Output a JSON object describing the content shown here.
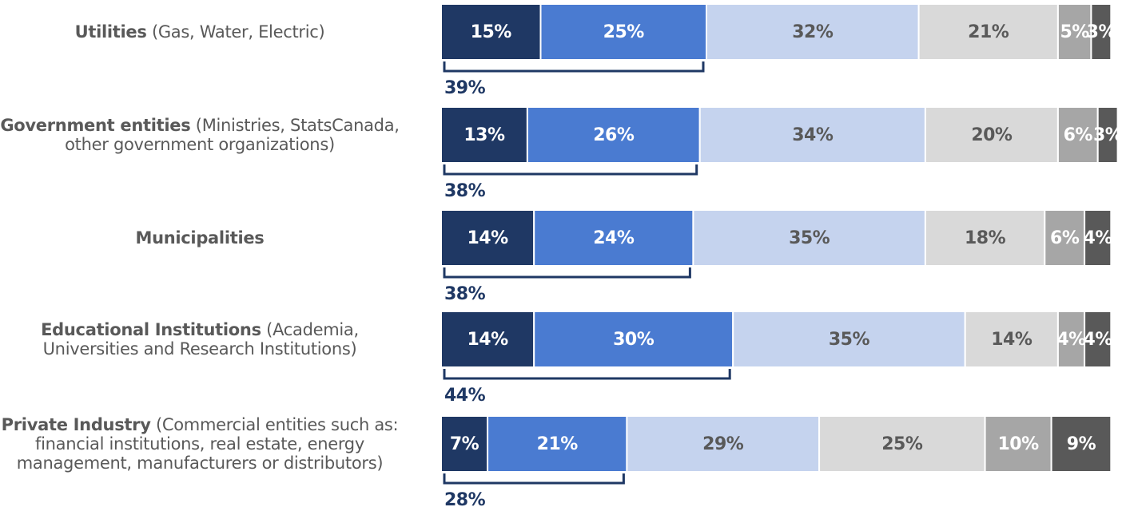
{
  "chart_data": {
    "type": "stacked-bar-horizontal",
    "categories": [
      "Utilities",
      "Government entities",
      "Municipalities",
      "Educational Institutions",
      "Private Industry"
    ],
    "category_details": [
      "(Gas, Water, Electric)",
      "(Ministries, StatsCanada, other government organizations)",
      null,
      "(Academia, Universities and Research Institutions)",
      "(Commercial entities such as: financial institutions, real estate, energy management, manufacturers or distributors)"
    ],
    "series": [
      {
        "color": "#1f3864",
        "label_color": "#ffffff",
        "values": [
          15,
          13,
          14,
          14,
          7
        ],
        "value_labels": [
          "15%",
          "13%",
          "14%",
          "14%",
          "7%"
        ]
      },
      {
        "color": "#4a7bd1",
        "label_color": "#ffffff",
        "values": [
          25,
          26,
          24,
          30,
          21
        ],
        "value_labels": [
          "25%",
          "26%",
          "24%",
          "30%",
          "21%"
        ]
      },
      {
        "color": "#c5d3ee",
        "label_color": "#595959",
        "values": [
          32,
          34,
          35,
          35,
          29
        ],
        "value_labels": [
          "32%",
          "34%",
          "35%",
          "35%",
          "29%"
        ]
      },
      {
        "color": "#d9d9d9",
        "label_color": "#595959",
        "values": [
          21,
          20,
          18,
          14,
          25
        ],
        "value_labels": [
          "21%",
          "20%",
          "18%",
          "14%",
          "25%"
        ]
      },
      {
        "color": "#a6a6a6",
        "label_color": "#ffffff",
        "values": [
          5,
          6,
          6,
          4,
          10
        ],
        "value_labels": [
          "5%",
          "6%",
          "6%",
          "4%",
          "10%"
        ]
      },
      {
        "color": "#595959",
        "label_color": "#ffffff",
        "values": [
          3,
          3,
          4,
          4,
          9
        ],
        "value_labels": [
          "3%",
          "3%",
          "4%",
          "4%",
          "9%"
        ]
      }
    ],
    "bracket_totals": [
      39,
      38,
      38,
      44,
      28
    ],
    "bracket_labels": [
      "39%",
      "38%",
      "38%",
      "44%",
      "28%"
    ],
    "bracket_color": "#1f3864"
  }
}
